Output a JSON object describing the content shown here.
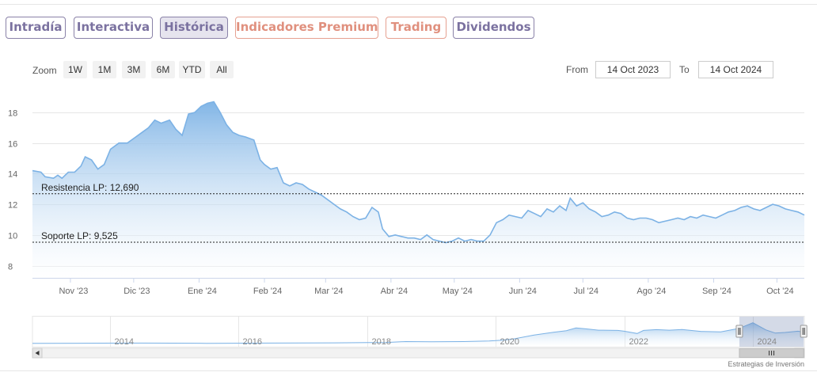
{
  "tabs": [
    {
      "label": "Intradía"
    },
    {
      "label": "Interactiva"
    },
    {
      "label": "Histórica"
    },
    {
      "label": "Indicadores Premium"
    },
    {
      "label": "Trading"
    },
    {
      "label": "Dividendos"
    }
  ],
  "zoom": {
    "label": "Zoom",
    "buttons": [
      "1W",
      "1M",
      "3M",
      "6M",
      "YTD",
      "All"
    ]
  },
  "range": {
    "from_label": "From",
    "from_value": "14 Oct 2023",
    "to_label": "To",
    "to_value": "14 Oct 2024"
  },
  "credit": "Estrategias de Inversión",
  "colors": {
    "line": "#7cb2e5",
    "fill_top": "#7cb2e5",
    "fill_bottom": "#ffffff",
    "accent": "#7b72a0"
  },
  "chart_data": {
    "type": "area",
    "title": "",
    "xlabel": "",
    "ylabel": "",
    "ylim": [
      7.2,
      19.5
    ],
    "y_ticks": [
      8,
      10,
      12,
      14,
      16,
      18
    ],
    "x_range": [
      "2023-10-14",
      "2024-10-14"
    ],
    "x_ticks": [
      {
        "date": "2023-11-01",
        "label": "Nov '23"
      },
      {
        "date": "2023-12-01",
        "label": "Dic '23"
      },
      {
        "date": "2024-01-01",
        "label": "Ene '24"
      },
      {
        "date": "2024-02-01",
        "label": "Feb '24"
      },
      {
        "date": "2024-03-01",
        "label": "Mar '24"
      },
      {
        "date": "2024-04-01",
        "label": "Abr '24"
      },
      {
        "date": "2024-05-01",
        "label": "May '24"
      },
      {
        "date": "2024-06-01",
        "label": "Jun '24"
      },
      {
        "date": "2024-07-01",
        "label": "Jul '24"
      },
      {
        "date": "2024-08-01",
        "label": "Ago '24"
      },
      {
        "date": "2024-09-01",
        "label": "Sep '24"
      },
      {
        "date": "2024-10-01",
        "label": "Oct '24"
      }
    ],
    "series": [
      {
        "points": [
          [
            "2023-10-14",
            14.2
          ],
          [
            "2023-10-18",
            14.1
          ],
          [
            "2023-10-20",
            13.8
          ],
          [
            "2023-10-24",
            13.7
          ],
          [
            "2023-10-26",
            13.9
          ],
          [
            "2023-10-28",
            13.7
          ],
          [
            "2023-10-31",
            14.1
          ],
          [
            "2023-11-03",
            14.1
          ],
          [
            "2023-11-06",
            14.5
          ],
          [
            "2023-11-08",
            15.1
          ],
          [
            "2023-11-11",
            14.9
          ],
          [
            "2023-11-14",
            14.3
          ],
          [
            "2023-11-17",
            14.6
          ],
          [
            "2023-11-20",
            15.6
          ],
          [
            "2023-11-24",
            16.0
          ],
          [
            "2023-11-28",
            16.0
          ],
          [
            "2023-12-02",
            16.4
          ],
          [
            "2023-12-05",
            16.7
          ],
          [
            "2023-12-08",
            17.0
          ],
          [
            "2023-12-11",
            17.5
          ],
          [
            "2023-12-14",
            17.3
          ],
          [
            "2023-12-18",
            17.5
          ],
          [
            "2023-12-21",
            16.9
          ],
          [
            "2023-12-24",
            16.5
          ],
          [
            "2023-12-27",
            17.9
          ],
          [
            "2023-12-30",
            18.0
          ],
          [
            "2024-01-02",
            18.4
          ],
          [
            "2024-01-05",
            18.6
          ],
          [
            "2024-01-08",
            18.7
          ],
          [
            "2024-01-11",
            18.0
          ],
          [
            "2024-01-14",
            17.2
          ],
          [
            "2024-01-17",
            16.7
          ],
          [
            "2024-01-20",
            16.5
          ],
          [
            "2024-01-23",
            16.4
          ],
          [
            "2024-01-27",
            16.2
          ],
          [
            "2024-01-30",
            14.9
          ],
          [
            "2024-02-01",
            14.6
          ],
          [
            "2024-02-04",
            14.3
          ],
          [
            "2024-02-07",
            14.4
          ],
          [
            "2024-02-10",
            13.4
          ],
          [
            "2024-02-13",
            13.2
          ],
          [
            "2024-02-16",
            13.4
          ],
          [
            "2024-02-19",
            13.3
          ],
          [
            "2024-02-22",
            13.0
          ],
          [
            "2024-02-25",
            12.8
          ],
          [
            "2024-02-28",
            12.6
          ],
          [
            "2024-03-02",
            12.3
          ],
          [
            "2024-03-05",
            12.0
          ],
          [
            "2024-03-08",
            11.7
          ],
          [
            "2024-03-11",
            11.5
          ],
          [
            "2024-03-14",
            11.2
          ],
          [
            "2024-03-17",
            11.0
          ],
          [
            "2024-03-20",
            11.1
          ],
          [
            "2024-03-23",
            11.8
          ],
          [
            "2024-03-26",
            11.5
          ],
          [
            "2024-03-28",
            10.4
          ],
          [
            "2024-03-31",
            9.9
          ],
          [
            "2024-04-03",
            10.0
          ],
          [
            "2024-04-06",
            9.9
          ],
          [
            "2024-04-09",
            9.8
          ],
          [
            "2024-04-12",
            9.8
          ],
          [
            "2024-04-15",
            9.7
          ],
          [
            "2024-04-18",
            10.0
          ],
          [
            "2024-04-21",
            9.7
          ],
          [
            "2024-04-24",
            9.6
          ],
          [
            "2024-04-27",
            9.5
          ],
          [
            "2024-04-30",
            9.6
          ],
          [
            "2024-05-03",
            9.8
          ],
          [
            "2024-05-06",
            9.6
          ],
          [
            "2024-05-09",
            9.7
          ],
          [
            "2024-05-12",
            9.6
          ],
          [
            "2024-05-15",
            9.6
          ],
          [
            "2024-05-18",
            10.0
          ],
          [
            "2024-05-21",
            10.8
          ],
          [
            "2024-05-24",
            11.0
          ],
          [
            "2024-05-27",
            11.3
          ],
          [
            "2024-05-30",
            11.2
          ],
          [
            "2024-06-02",
            11.1
          ],
          [
            "2024-06-05",
            11.6
          ],
          [
            "2024-06-08",
            11.4
          ],
          [
            "2024-06-11",
            11.2
          ],
          [
            "2024-06-14",
            11.7
          ],
          [
            "2024-06-17",
            11.5
          ],
          [
            "2024-06-20",
            11.9
          ],
          [
            "2024-06-23",
            11.6
          ],
          [
            "2024-06-25",
            12.4
          ],
          [
            "2024-06-28",
            11.9
          ],
          [
            "2024-07-01",
            12.1
          ],
          [
            "2024-07-04",
            11.7
          ],
          [
            "2024-07-07",
            11.5
          ],
          [
            "2024-07-10",
            11.2
          ],
          [
            "2024-07-13",
            11.3
          ],
          [
            "2024-07-16",
            11.5
          ],
          [
            "2024-07-19",
            11.4
          ],
          [
            "2024-07-22",
            11.1
          ],
          [
            "2024-07-25",
            11.0
          ],
          [
            "2024-07-28",
            11.1
          ],
          [
            "2024-07-31",
            11.1
          ],
          [
            "2024-08-03",
            11.0
          ],
          [
            "2024-08-06",
            10.8
          ],
          [
            "2024-08-09",
            10.9
          ],
          [
            "2024-08-12",
            11.0
          ],
          [
            "2024-08-15",
            11.1
          ],
          [
            "2024-08-18",
            11.0
          ],
          [
            "2024-08-21",
            11.2
          ],
          [
            "2024-08-24",
            11.1
          ],
          [
            "2024-08-27",
            11.3
          ],
          [
            "2024-08-30",
            11.2
          ],
          [
            "2024-09-02",
            11.1
          ],
          [
            "2024-09-05",
            11.3
          ],
          [
            "2024-09-08",
            11.5
          ],
          [
            "2024-09-11",
            11.6
          ],
          [
            "2024-09-14",
            11.8
          ],
          [
            "2024-09-17",
            11.9
          ],
          [
            "2024-09-20",
            11.7
          ],
          [
            "2024-09-23",
            11.6
          ],
          [
            "2024-09-26",
            11.8
          ],
          [
            "2024-09-29",
            12.0
          ],
          [
            "2024-10-02",
            11.9
          ],
          [
            "2024-10-05",
            11.7
          ],
          [
            "2024-10-08",
            11.6
          ],
          [
            "2024-10-11",
            11.5
          ],
          [
            "2024-10-14",
            11.3
          ]
        ]
      }
    ],
    "annotations": [
      {
        "label": "Resistencia LP: 12,690",
        "y": 12.69,
        "style": "dashed"
      },
      {
        "label": "Soporte LP: 9,525",
        "y": 9.525,
        "style": "dashed"
      }
    ],
    "grid": {
      "horizontal": true,
      "vertical": false
    },
    "legend": "none"
  },
  "navigator": {
    "year_labels": [
      "2014",
      "2016",
      "2018",
      "2020",
      "2022",
      "2024"
    ],
    "x_range": [
      2012.8,
      2024.8
    ],
    "selected_range": [
      2023.79,
      2024.79
    ],
    "ylim": [
      0,
      22
    ],
    "points": [
      [
        2012.8,
        2.6
      ],
      [
        2013.5,
        2.7
      ],
      [
        2014.5,
        2.8
      ],
      [
        2015.5,
        2.6
      ],
      [
        2016.5,
        2.8
      ],
      [
        2017.5,
        3.0
      ],
      [
        2018.0,
        3.2
      ],
      [
        2018.3,
        3.3
      ],
      [
        2018.6,
        4.0
      ],
      [
        2019.0,
        3.8
      ],
      [
        2019.5,
        4.0
      ],
      [
        2019.9,
        4.4
      ],
      [
        2020.1,
        5.0
      ],
      [
        2020.3,
        6.2
      ],
      [
        2020.6,
        9.0
      ],
      [
        2020.9,
        11.2
      ],
      [
        2021.1,
        12.4
      ],
      [
        2021.25,
        14.5
      ],
      [
        2021.4,
        13.8
      ],
      [
        2021.6,
        12.8
      ],
      [
        2021.9,
        12.6
      ],
      [
        2022.0,
        12.0
      ],
      [
        2022.2,
        10.2
      ],
      [
        2022.3,
        12.6
      ],
      [
        2022.5,
        13.2
      ],
      [
        2022.7,
        12.8
      ],
      [
        2022.9,
        13.3
      ],
      [
        2023.2,
        11.8
      ],
      [
        2023.5,
        11.5
      ],
      [
        2023.79,
        14.2
      ],
      [
        2024.0,
        18.5
      ],
      [
        2024.2,
        13.0
      ],
      [
        2024.35,
        10.5
      ],
      [
        2024.5,
        11.0
      ],
      [
        2024.7,
        12.0
      ],
      [
        2024.79,
        11.3
      ]
    ]
  }
}
